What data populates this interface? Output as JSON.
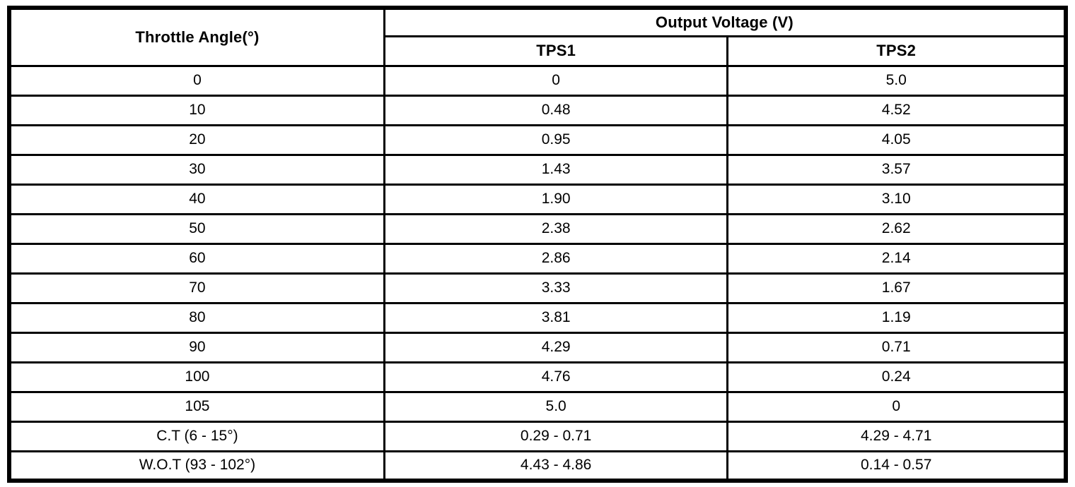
{
  "chart_data": {
    "type": "table",
    "header": {
      "throttle_angle": "Throttle Angle(°)",
      "output_voltage_group": "Output Voltage (V)",
      "tps1": "TPS1",
      "tps2": "TPS2"
    },
    "rows": [
      {
        "angle": "0",
        "tps1": "0",
        "tps2": "5.0"
      },
      {
        "angle": "10",
        "tps1": "0.48",
        "tps2": "4.52"
      },
      {
        "angle": "20",
        "tps1": "0.95",
        "tps2": "4.05"
      },
      {
        "angle": "30",
        "tps1": "1.43",
        "tps2": "3.57"
      },
      {
        "angle": "40",
        "tps1": "1.90",
        "tps2": "3.10"
      },
      {
        "angle": "50",
        "tps1": "2.38",
        "tps2": "2.62"
      },
      {
        "angle": "60",
        "tps1": "2.86",
        "tps2": "2.14"
      },
      {
        "angle": "70",
        "tps1": "3.33",
        "tps2": "1.67"
      },
      {
        "angle": "80",
        "tps1": "3.81",
        "tps2": "1.19"
      },
      {
        "angle": "90",
        "tps1": "4.29",
        "tps2": "0.71"
      },
      {
        "angle": "100",
        "tps1": "4.76",
        "tps2": "0.24"
      },
      {
        "angle": "105",
        "tps1": "5.0",
        "tps2": "0"
      },
      {
        "angle": "C.T (6 - 15°)",
        "tps1": "0.29 - 0.71",
        "tps2": "4.29 - 4.71"
      },
      {
        "angle": "W.O.T (93 - 102°)",
        "tps1": "4.43 - 4.86",
        "tps2": "0.14 - 0.57"
      }
    ],
    "colors": {
      "border": "#000000",
      "background": "#ffffff",
      "text": "#000000"
    }
  }
}
